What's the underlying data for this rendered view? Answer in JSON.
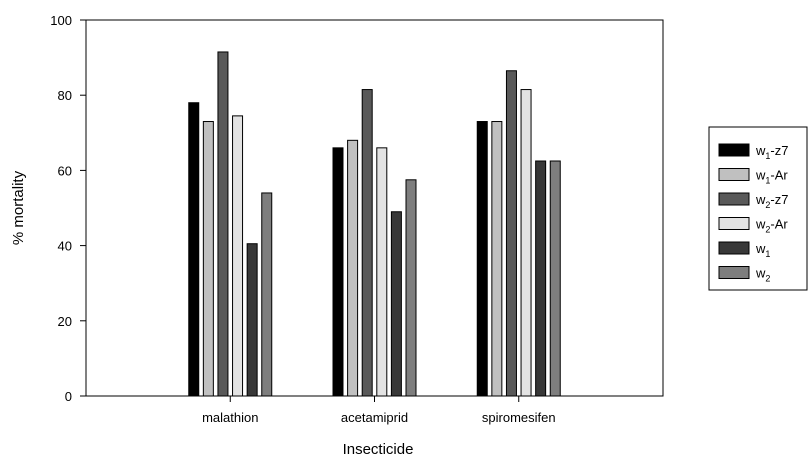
{
  "chart_data": {
    "type": "bar",
    "title": "",
    "xlabel": "Insecticide",
    "ylabel": "% mortality",
    "ylim": [
      0,
      100
    ],
    "yticks": [
      0,
      20,
      40,
      60,
      80,
      100
    ],
    "grid": false,
    "legend_position": "right",
    "categories": [
      "malathion",
      "acetamiprid",
      "spiromesifen"
    ],
    "series": [
      {
        "name": "w1-z7",
        "label_base": "w",
        "label_sub": "1",
        "label_suffix": "-z7",
        "color": "#000000",
        "values": [
          78,
          66,
          73
        ]
      },
      {
        "name": "w1-Ar",
        "label_base": "w",
        "label_sub": "1",
        "label_suffix": "-Ar",
        "color": "#c0c0c0",
        "values": [
          73,
          68,
          73
        ]
      },
      {
        "name": "w2-z7",
        "label_base": "w",
        "label_sub": "2",
        "label_suffix": "-z7",
        "color": "#595959",
        "values": [
          91.5,
          81.5,
          86.5
        ]
      },
      {
        "name": "w2-Ar",
        "label_base": "w",
        "label_sub": "2",
        "label_suffix": "-Ar",
        "color": "#e3e3e3",
        "values": [
          74.5,
          66,
          81.5
        ]
      },
      {
        "name": "w1",
        "label_base": "w",
        "label_sub": "1",
        "label_suffix": "",
        "color": "#383838",
        "values": [
          40.5,
          49,
          62.5
        ]
      },
      {
        "name": "w2",
        "label_base": "w",
        "label_sub": "2",
        "label_suffix": "",
        "color": "#7e7e7e",
        "values": [
          54,
          57.5,
          62.5
        ]
      }
    ]
  }
}
